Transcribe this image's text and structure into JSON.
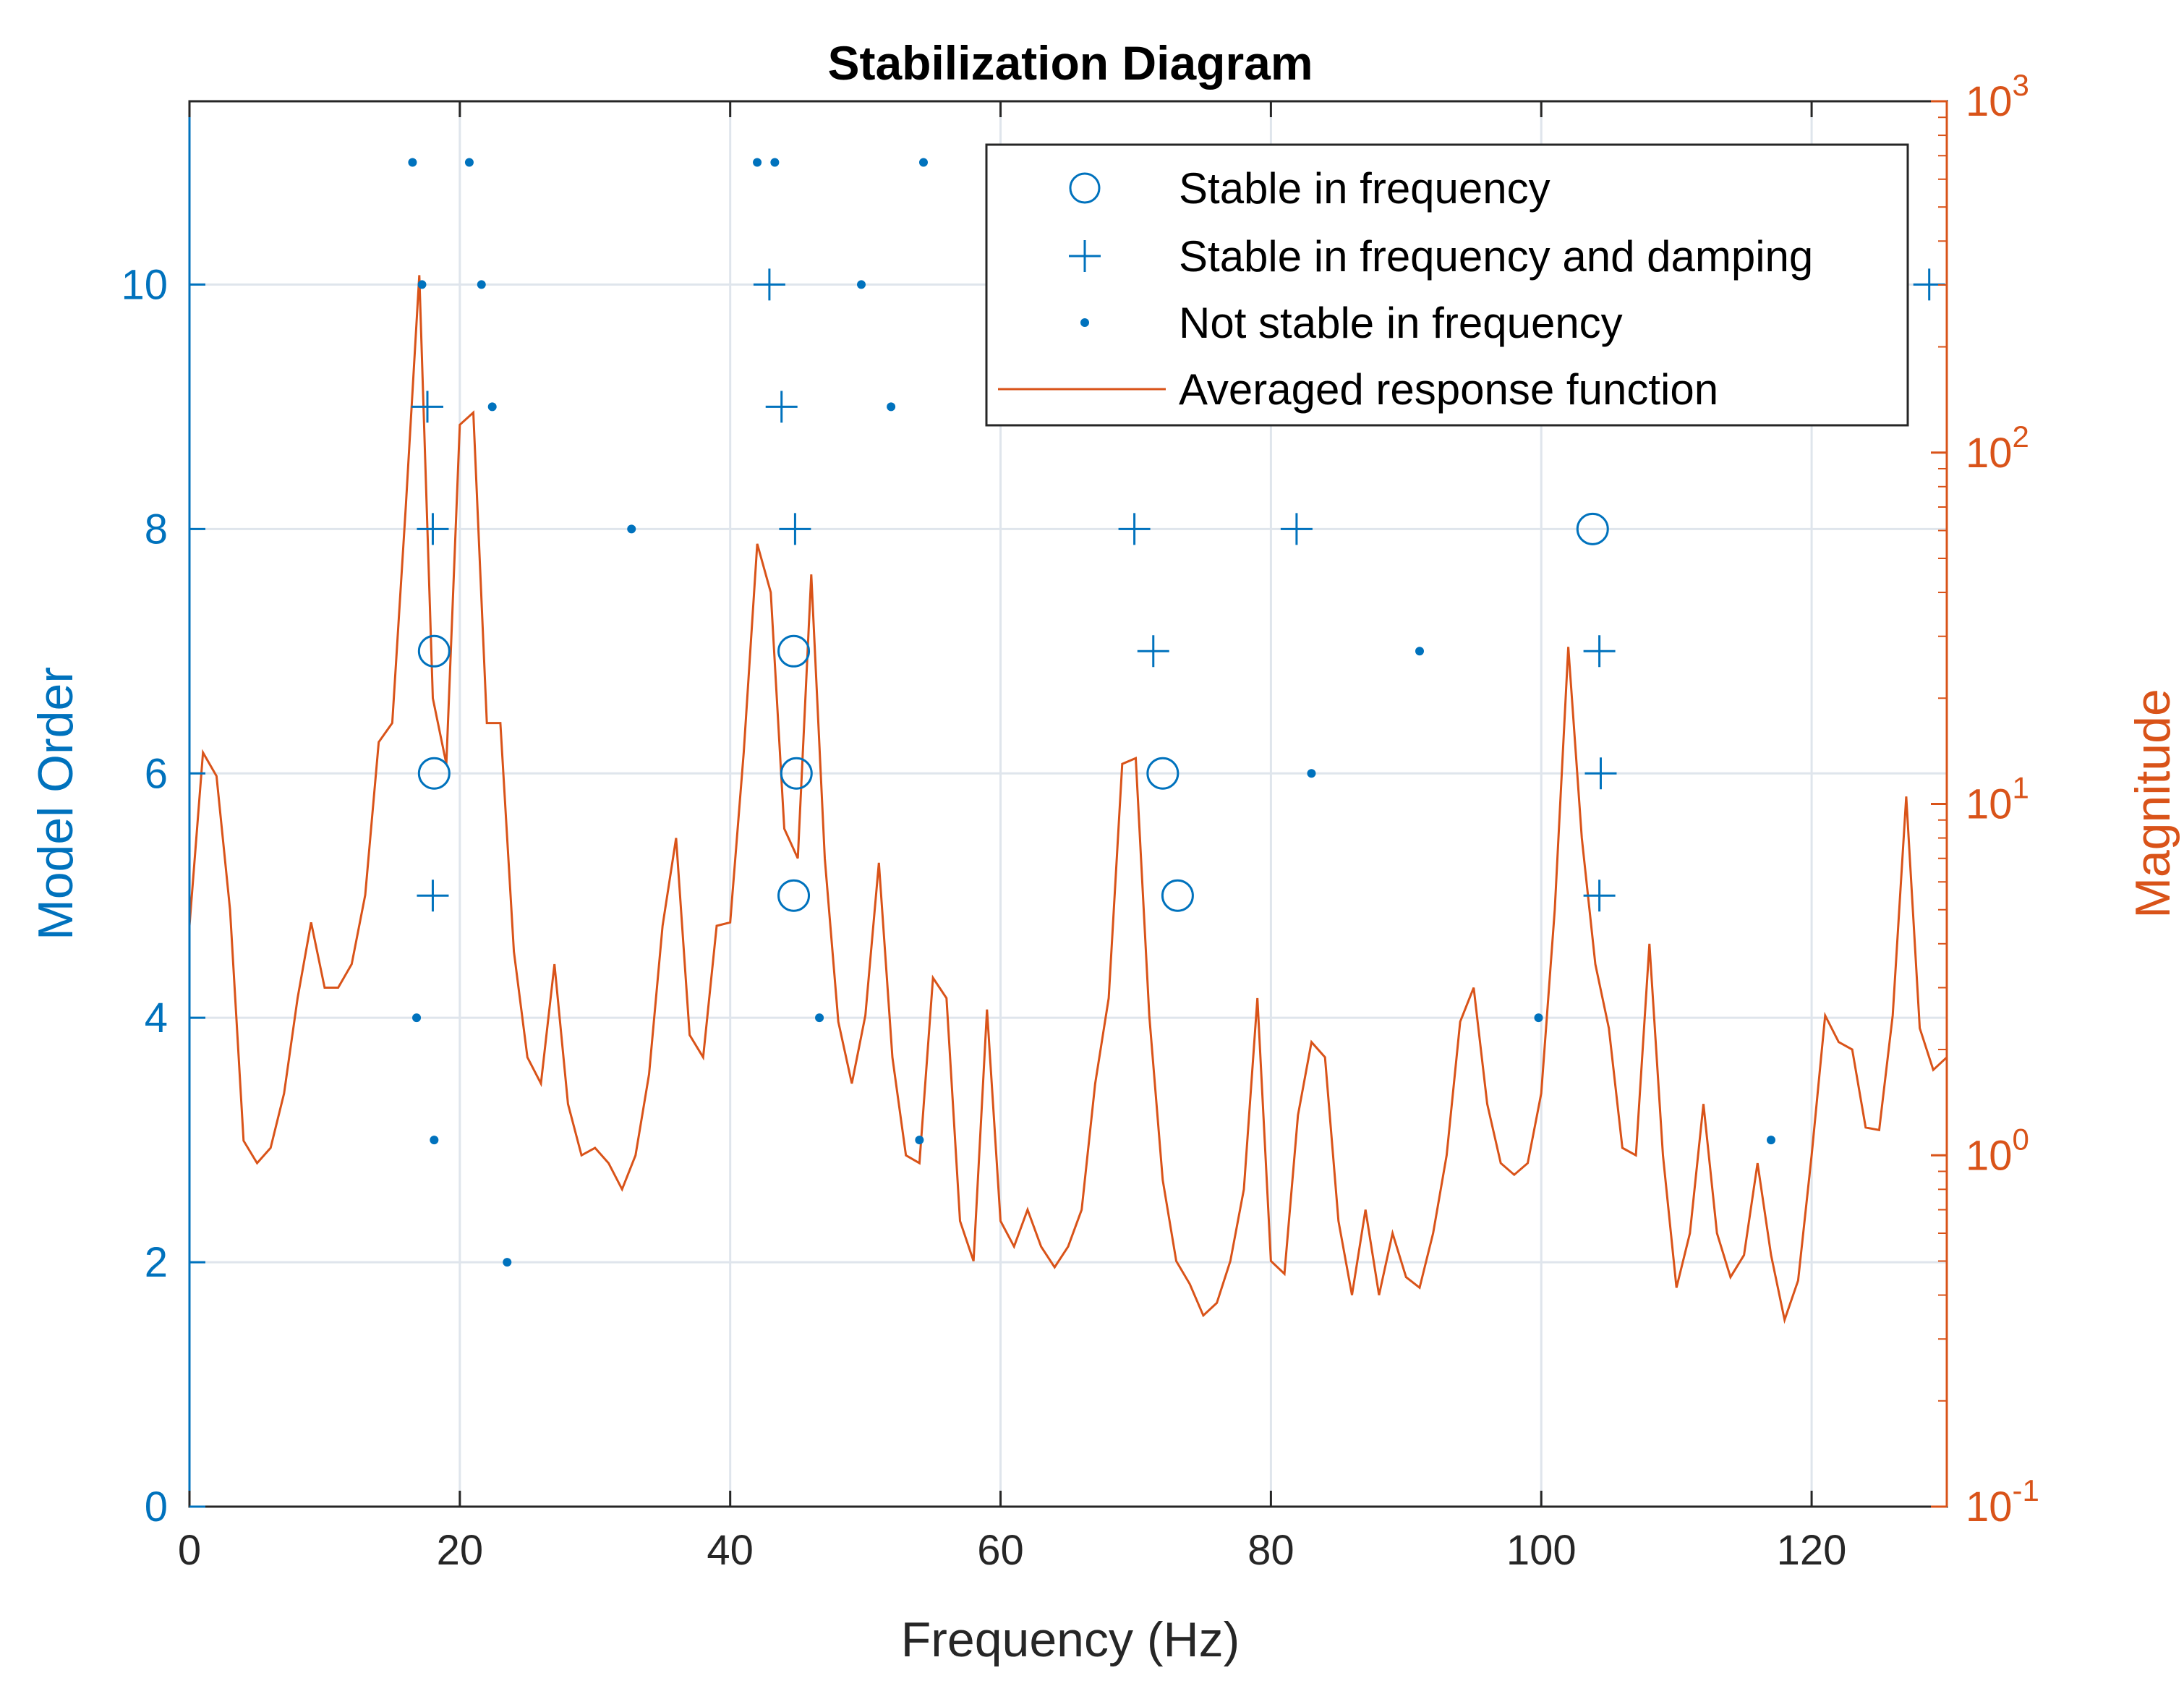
{
  "chart_data": {
    "type": "scatter",
    "title": "Stabilization Diagram",
    "xlabel": "Frequency (Hz)",
    "ylabel_left": "Model Order",
    "ylabel_right": "Magnitude",
    "xlim": [
      0,
      130
    ],
    "ylim_left": [
      0,
      11.5
    ],
    "ylim_right": [
      0.1,
      1000
    ],
    "right_axis_scale": "log",
    "grid": true,
    "legend_position": "top-right",
    "x_ticks": [
      "0",
      "20",
      "40",
      "60",
      "80",
      "100",
      "120"
    ],
    "y_left_ticks": [
      "0",
      "2",
      "4",
      "6",
      "8",
      "10"
    ],
    "y_right_ticks": [
      {
        "base": "10",
        "exp": "-1"
      },
      {
        "base": "10",
        "exp": "0"
      },
      {
        "base": "10",
        "exp": "1"
      },
      {
        "base": "10",
        "exp": "2"
      },
      {
        "base": "10",
        "exp": "3"
      }
    ],
    "colors": {
      "left": "#0072BD",
      "right": "#D95319",
      "grid": "#dfe5ec",
      "axis": "#262626"
    },
    "series": [
      {
        "name": "Stable in frequency",
        "marker": "circle",
        "points": [
          [
            18.1,
            7
          ],
          [
            18.1,
            6
          ],
          [
            44.7,
            7
          ],
          [
            44.9,
            6
          ],
          [
            44.7,
            5
          ],
          [
            72.0,
            6
          ],
          [
            73.1,
            5
          ],
          [
            103.8,
            8
          ]
        ]
      },
      {
        "name": "Stable in frequency and damping",
        "marker": "plus",
        "points": [
          [
            17.6,
            9
          ],
          [
            18.0,
            8
          ],
          [
            18.0,
            5
          ],
          [
            42.9,
            10
          ],
          [
            43.8,
            9
          ],
          [
            44.8,
            8
          ],
          [
            69.9,
            8
          ],
          [
            71.3,
            7
          ],
          [
            81.9,
            8
          ],
          [
            104.3,
            7
          ],
          [
            104.4,
            6
          ],
          [
            104.3,
            5
          ],
          [
            128.7,
            10
          ]
        ]
      },
      {
        "name": "Not stable in frequency",
        "marker": "dot",
        "points": [
          [
            16.5,
            11
          ],
          [
            20.7,
            11
          ],
          [
            42.0,
            11
          ],
          [
            43.3,
            11
          ],
          [
            54.3,
            11
          ],
          [
            17.2,
            10
          ],
          [
            21.6,
            10
          ],
          [
            49.7,
            10
          ],
          [
            22.4,
            9
          ],
          [
            51.9,
            9
          ],
          [
            32.7,
            8
          ],
          [
            91.0,
            7
          ],
          [
            83.0,
            6
          ],
          [
            16.8,
            4
          ],
          [
            46.6,
            4
          ],
          [
            99.8,
            4
          ],
          [
            18.1,
            3
          ],
          [
            54.0,
            3
          ],
          [
            117.0,
            3
          ],
          [
            23.5,
            2
          ]
        ]
      },
      {
        "name": "Averaged response function",
        "marker": "line",
        "axis": "right",
        "x": [
          0,
          1,
          2,
          3,
          4,
          5,
          6,
          7,
          8,
          9,
          10,
          11,
          12,
          13,
          14,
          15,
          16,
          17,
          18,
          19,
          20,
          21,
          22,
          23,
          24,
          25,
          26,
          27,
          28,
          29,
          30,
          31,
          32,
          33,
          34,
          35,
          36,
          37,
          38,
          39,
          40,
          41,
          42,
          43,
          44,
          45,
          46,
          47,
          48,
          49,
          50,
          51,
          52,
          53,
          54,
          55,
          56,
          57,
          58,
          59,
          60,
          61,
          62,
          63,
          64,
          65,
          66,
          67,
          68,
          69,
          70,
          71,
          72,
          73,
          74,
          75,
          76,
          77,
          78,
          79,
          80,
          81,
          82,
          83,
          84,
          85,
          86,
          87,
          88,
          89,
          90,
          91,
          92,
          93,
          94,
          95,
          96,
          97,
          98,
          99,
          100,
          101,
          102,
          103,
          104,
          105,
          106,
          107,
          108,
          109,
          110,
          111,
          112,
          113,
          114,
          115,
          116,
          117,
          118,
          119,
          120,
          121,
          122,
          123,
          124,
          125,
          126,
          127,
          128,
          129,
          130
        ],
        "values": [
          4.5,
          14.0,
          12.0,
          5.0,
          1.1,
          0.95,
          1.05,
          1.5,
          2.8,
          4.6,
          3.0,
          3.0,
          3.5,
          5.5,
          15.0,
          17.0,
          70.0,
          320.0,
          20.0,
          13.0,
          120.0,
          130.0,
          17.0,
          17.0,
          3.8,
          1.9,
          1.6,
          3.5,
          1.4,
          1.0,
          1.05,
          0.95,
          0.8,
          1.0,
          1.7,
          4.5,
          8.0,
          2.2,
          1.9,
          4.5,
          4.6,
          14.0,
          55.0,
          40.0,
          8.5,
          7.0,
          45.0,
          7.0,
          2.4,
          1.6,
          2.5,
          6.8,
          1.9,
          1.0,
          0.95,
          3.2,
          2.8,
          0.65,
          0.5,
          2.6,
          0.65,
          0.55,
          0.7,
          0.55,
          0.48,
          0.55,
          0.7,
          1.6,
          2.8,
          13.0,
          13.5,
          2.5,
          0.85,
          0.5,
          0.43,
          0.35,
          0.38,
          0.5,
          0.8,
          2.8,
          0.5,
          0.46,
          1.3,
          2.1,
          1.9,
          0.65,
          0.4,
          0.7,
          0.4,
          0.6,
          0.45,
          0.42,
          0.6,
          1.0,
          2.4,
          3.0,
          1.4,
          0.95,
          0.88,
          0.95,
          1.5,
          5.0,
          28.0,
          8.0,
          3.5,
          2.3,
          1.05,
          1.0,
          4.0,
          1.0,
          0.42,
          0.6,
          1.4,
          0.6,
          0.45,
          0.52,
          0.95,
          0.52,
          0.34,
          0.44,
          1.0,
          2.5,
          2.1,
          2.0,
          1.2,
          1.18,
          2.5,
          10.5,
          2.3,
          1.75,
          1.9
        ]
      }
    ]
  }
}
